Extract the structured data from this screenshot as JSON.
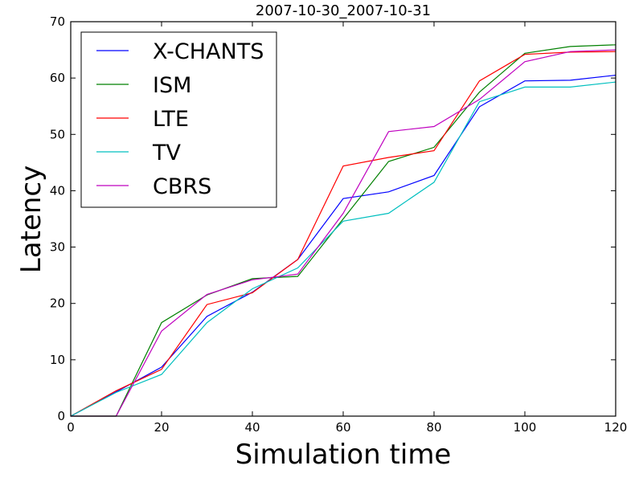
{
  "chart_data": {
    "type": "line",
    "title": "2007-10-30_2007-10-31",
    "xlabel": "Simulation time",
    "ylabel": "Latency",
    "xlim": [
      0,
      120
    ],
    "ylim": [
      0,
      70
    ],
    "xticks": [
      0,
      20,
      40,
      60,
      80,
      100,
      120
    ],
    "yticks": [
      0,
      10,
      20,
      30,
      40,
      50,
      60,
      70
    ],
    "xtick_labels": [
      "0",
      "20",
      "40",
      "60",
      "80",
      "100",
      "120"
    ],
    "ytick_labels": [
      "0",
      "10",
      "20",
      "30",
      "40",
      "50",
      "60",
      "70"
    ],
    "grid": false,
    "legend_position": "top-left",
    "x": [
      0,
      10,
      20,
      30,
      40,
      50,
      60,
      70,
      80,
      90,
      100,
      110,
      120
    ],
    "series": [
      {
        "name": "X-CHANTS",
        "color": "#0000ff",
        "values": [
          0,
          4.3,
          8.7,
          17.7,
          22.0,
          27.8,
          38.6,
          39.8,
          42.7,
          54.9,
          59.5,
          59.6,
          60.5
        ]
      },
      {
        "name": "ISM",
        "color": "#008000",
        "values": [
          0,
          0,
          16.6,
          21.5,
          24.4,
          24.8,
          35.0,
          45.2,
          47.7,
          57.5,
          64.4,
          65.6,
          65.9
        ]
      },
      {
        "name": "LTE",
        "color": "#ff0000",
        "values": [
          0,
          4.5,
          8.3,
          19.8,
          21.9,
          27.8,
          44.4,
          45.9,
          47.1,
          59.5,
          64.2,
          64.6,
          64.7
        ]
      },
      {
        "name": "TV",
        "color": "#00bfbf",
        "values": [
          0,
          4.2,
          7.4,
          16.6,
          22.6,
          26.3,
          34.6,
          36.0,
          41.5,
          55.8,
          58.4,
          58.4,
          59.3
        ]
      },
      {
        "name": "CBRS",
        "color": "#bf00bf",
        "values": [
          0,
          0,
          15.1,
          21.6,
          24.2,
          25.2,
          36.0,
          50.5,
          51.4,
          56.2,
          62.9,
          64.7,
          65.0
        ]
      }
    ]
  }
}
